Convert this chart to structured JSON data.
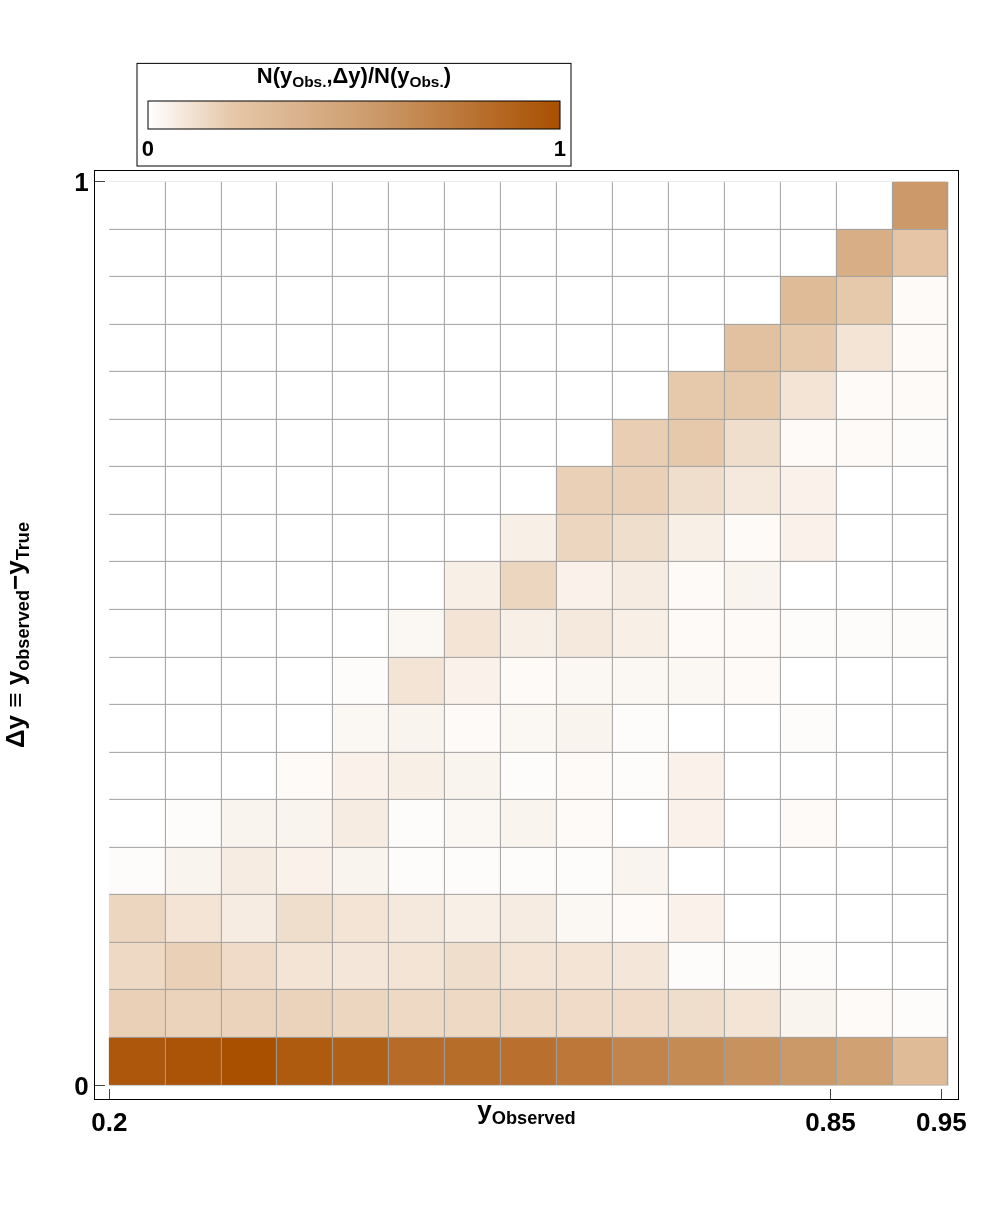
{
  "chart_data": {
    "type": "heatmap",
    "xlabel": "y$_{Observed}$",
    "ylabel": "Δy ≡ y$_{observed}$−y$_{True}$",
    "clabel": "N(y$_{Obs.}$,Δy)/N(y$_{Obs.}$)",
    "x": [
      0.225,
      0.276,
      0.326,
      0.376,
      0.427,
      0.477,
      0.528,
      0.578,
      0.629,
      0.679,
      0.73,
      0.78,
      0.83,
      0.881,
      0.931
    ],
    "cells": [
      [
        0,
        0,
        0,
        0,
        0,
        0,
        0,
        0,
        0,
        0,
        0,
        0,
        0,
        0,
        0.55
      ],
      [
        0,
        0,
        0,
        0,
        0,
        0,
        0,
        0,
        0,
        0,
        0,
        0,
        0,
        0.4,
        0.22
      ],
      [
        0,
        0,
        0,
        0,
        0,
        0,
        0,
        0,
        0,
        0,
        0,
        0,
        0.3,
        0.2,
        0.02
      ],
      [
        0,
        0,
        0,
        0,
        0,
        0,
        0,
        0,
        0,
        0,
        0,
        0.25,
        0.2,
        0.1,
        0.02
      ],
      [
        0,
        0,
        0,
        0,
        0,
        0,
        0,
        0,
        0,
        0,
        0.2,
        0.2,
        0.1,
        0.02,
        0.02
      ],
      [
        0,
        0,
        0,
        0,
        0,
        0,
        0,
        0,
        0,
        0.18,
        0.2,
        0.12,
        0.02,
        0.02,
        0.01
      ],
      [
        0,
        0,
        0,
        0,
        0,
        0,
        0,
        0,
        0.17,
        0.17,
        0.12,
        0.08,
        0.05,
        0,
        0
      ],
      [
        0,
        0,
        0,
        0,
        0,
        0,
        0,
        0.06,
        0.15,
        0.12,
        0.06,
        0.02,
        0.05,
        0,
        0
      ],
      [
        0,
        0,
        0,
        0,
        0,
        0,
        0.06,
        0.15,
        0.05,
        0.07,
        0.02,
        0.04,
        0,
        0,
        0
      ],
      [
        0,
        0,
        0,
        0,
        0,
        0.03,
        0.1,
        0.06,
        0.08,
        0.06,
        0.02,
        0.02,
        0.01,
        0.01,
        0.01
      ],
      [
        0,
        0,
        0,
        0,
        0.01,
        0.1,
        0.05,
        0.02,
        0.03,
        0.03,
        0.03,
        0.02,
        0,
        0,
        0
      ],
      [
        0,
        0,
        0,
        0,
        0.03,
        0.04,
        0.02,
        0.03,
        0.04,
        0.01,
        0,
        0,
        0.01,
        0,
        0
      ],
      [
        0,
        0,
        0,
        0.02,
        0.05,
        0.06,
        0.04,
        0.01,
        0.02,
        0.01,
        0.05,
        0,
        0,
        0,
        0
      ],
      [
        0,
        0.01,
        0.04,
        0.04,
        0.07,
        0.01,
        0.03,
        0.04,
        0.02,
        0,
        0.05,
        0,
        0.02,
        0,
        0
      ],
      [
        0.01,
        0.04,
        0.07,
        0.05,
        0.04,
        0.01,
        0.01,
        0.01,
        0.01,
        0.04,
        0,
        0,
        0,
        0,
        0
      ],
      [
        0.15,
        0.1,
        0.07,
        0.12,
        0.1,
        0.08,
        0.06,
        0.07,
        0.03,
        0.02,
        0.05,
        0,
        0,
        0,
        0
      ],
      [
        0.14,
        0.17,
        0.13,
        0.1,
        0.09,
        0.1,
        0.12,
        0.1,
        0.1,
        0.09,
        0.01,
        0.01,
        0.01,
        0,
        0
      ],
      [
        0.17,
        0.16,
        0.16,
        0.16,
        0.15,
        0.14,
        0.14,
        0.14,
        0.13,
        0.13,
        0.12,
        0.1,
        0.04,
        0.02,
        0.01
      ],
      [
        0.95,
        0.97,
        1.0,
        0.93,
        0.9,
        0.83,
        0.82,
        0.8,
        0.76,
        0.68,
        0.64,
        0.6,
        0.56,
        0.5,
        0.3
      ]
    ],
    "xlim": [
      0.187,
      0.965
    ],
    "xticks": [
      0.2,
      0.85,
      0.95
    ],
    "ylim": [
      -0.015,
      1.012
    ],
    "yticks": [
      0,
      1
    ],
    "clim": [
      0,
      1
    ],
    "cticks": [
      0,
      1
    ]
  }
}
